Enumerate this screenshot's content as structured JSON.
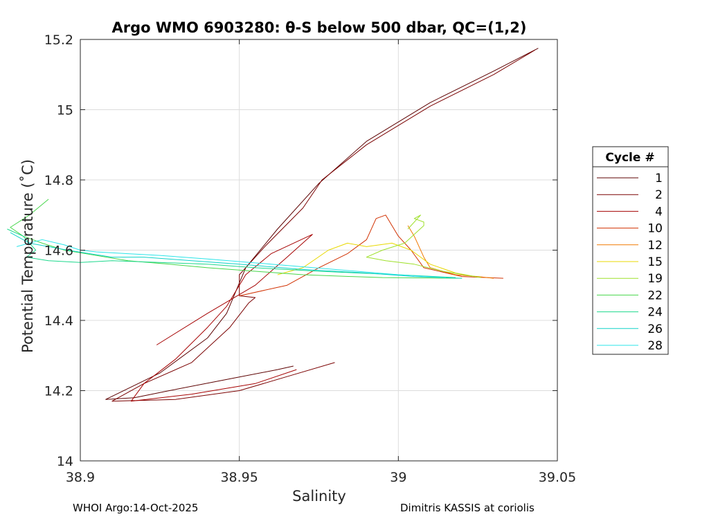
{
  "chart_data": {
    "type": "line",
    "title": "Argo WMO 6903280: θ-S below 500 dbar,  QC=(1,2)",
    "xlabel": "Salinity",
    "ylabel": "Potential Temperature (˚C)",
    "xlim": [
      38.9,
      39.05
    ],
    "ylim": [
      14,
      15.2
    ],
    "xticks": [
      38.9,
      38.95,
      39,
      39.05
    ],
    "xtick_labels": [
      "38.9",
      "38.95",
      "39",
      "39.05"
    ],
    "yticks": [
      14,
      14.2,
      14.4,
      14.6,
      14.8,
      15,
      15.2
    ],
    "ytick_labels": [
      "14",
      "14.2",
      "14.4",
      "14.6",
      "14.8",
      "15",
      "15.2"
    ],
    "grid": true,
    "legend_title": "Cycle #",
    "legend_position": "outside-right",
    "series": [
      {
        "name": "1",
        "color": "#5c0000",
        "points": [
          [
            39.044,
            15.175
          ],
          [
            39.03,
            15.11
          ],
          [
            39.01,
            15.02
          ],
          [
            38.99,
            14.91
          ],
          [
            38.975,
            14.79
          ],
          [
            38.962,
            14.66
          ],
          [
            38.952,
            14.55
          ],
          [
            38.946,
            14.42
          ],
          [
            38.94,
            14.35
          ],
          [
            38.925,
            14.25
          ],
          [
            38.908,
            14.175
          ],
          [
            38.917,
            14.18
          ],
          [
            38.928,
            14.2
          ],
          [
            38.945,
            14.23
          ],
          [
            38.962,
            14.26
          ],
          [
            38.967,
            14.27
          ]
        ]
      },
      {
        "name": "2",
        "color": "#7a0000",
        "points": [
          [
            39.043,
            15.17
          ],
          [
            39.03,
            15.1
          ],
          [
            39.01,
            15.01
          ],
          [
            38.99,
            14.9
          ],
          [
            38.976,
            14.8
          ],
          [
            38.97,
            14.72
          ],
          [
            38.958,
            14.61
          ],
          [
            38.95,
            14.53
          ],
          [
            38.95,
            14.47
          ],
          [
            38.955,
            14.465
          ],
          [
            38.953,
            14.45
          ],
          [
            38.947,
            14.38
          ],
          [
            38.935,
            14.28
          ],
          [
            38.92,
            14.22
          ],
          [
            38.91,
            14.17
          ],
          [
            38.93,
            14.175
          ],
          [
            38.95,
            14.2
          ],
          [
            38.965,
            14.24
          ],
          [
            38.98,
            14.28
          ]
        ]
      },
      {
        "name": "4",
        "color": "#a50000",
        "points": [
          [
            38.924,
            14.33
          ],
          [
            38.94,
            14.42
          ],
          [
            38.955,
            14.5
          ],
          [
            38.965,
            14.58
          ],
          [
            38.973,
            14.645
          ],
          [
            38.96,
            14.59
          ],
          [
            38.952,
            14.53
          ],
          [
            38.946,
            14.44
          ],
          [
            38.94,
            14.38
          ],
          [
            38.93,
            14.29
          ],
          [
            38.92,
            14.22
          ],
          [
            38.916,
            14.17
          ],
          [
            38.935,
            14.19
          ],
          [
            38.955,
            14.22
          ],
          [
            38.968,
            14.26
          ]
        ]
      },
      {
        "name": "10",
        "color": "#d13000",
        "points": [
          [
            38.95,
            14.47
          ],
          [
            38.965,
            14.5
          ],
          [
            38.975,
            14.55
          ],
          [
            38.984,
            14.59
          ],
          [
            38.99,
            14.63
          ],
          [
            38.993,
            14.69
          ],
          [
            38.996,
            14.7
          ],
          [
            38.998,
            14.67
          ],
          [
            39.0,
            14.64
          ],
          [
            39.004,
            14.6
          ],
          [
            39.008,
            14.55
          ],
          [
            39.02,
            14.525
          ],
          [
            39.033,
            14.52
          ]
        ]
      },
      {
        "name": "12",
        "color": "#f07800",
        "points": [
          [
            39.003,
            14.67
          ],
          [
            39.005,
            14.64
          ],
          [
            39.008,
            14.58
          ],
          [
            39.01,
            14.55
          ],
          [
            39.018,
            14.53
          ],
          [
            39.025,
            14.525
          ],
          [
            39.03,
            14.52
          ]
        ]
      },
      {
        "name": "15",
        "color": "#e8d800",
        "points": [
          [
            38.962,
            14.53
          ],
          [
            38.97,
            14.55
          ],
          [
            38.978,
            14.6
          ],
          [
            38.984,
            14.62
          ],
          [
            38.99,
            14.61
          ],
          [
            38.998,
            14.62
          ],
          [
            39.004,
            14.6
          ],
          [
            39.01,
            14.56
          ],
          [
            39.018,
            14.535
          ],
          [
            39.026,
            14.522
          ]
        ]
      },
      {
        "name": "19",
        "color": "#9ee02a",
        "points": [
          [
            39.003,
            14.66
          ],
          [
            39.007,
            14.7
          ],
          [
            39.005,
            14.69
          ],
          [
            39.008,
            14.68
          ],
          [
            39.008,
            14.67
          ],
          [
            39.002,
            14.62
          ],
          [
            38.995,
            14.6
          ],
          [
            38.99,
            14.58
          ],
          [
            38.996,
            14.57
          ],
          [
            39.005,
            14.56
          ],
          [
            39.014,
            14.54
          ],
          [
            39.026,
            14.522
          ]
        ]
      },
      {
        "name": "22",
        "color": "#46d64a",
        "points": [
          [
            38.89,
            14.745
          ],
          [
            38.884,
            14.7
          ],
          [
            38.878,
            14.665
          ],
          [
            38.882,
            14.64
          ],
          [
            38.888,
            14.62
          ],
          [
            38.895,
            14.6
          ],
          [
            38.905,
            14.585
          ],
          [
            38.915,
            14.57
          ],
          [
            38.928,
            14.56
          ],
          [
            38.94,
            14.55
          ],
          [
            38.955,
            14.54
          ],
          [
            38.97,
            14.53
          ],
          [
            38.985,
            14.525
          ],
          [
            38.995,
            14.522
          ],
          [
            39.02,
            14.52
          ]
        ]
      },
      {
        "name": "24",
        "color": "#1cd88c",
        "points": [
          [
            38.877,
            14.66
          ],
          [
            38.882,
            14.64
          ],
          [
            38.886,
            14.6
          ],
          [
            38.883,
            14.58
          ],
          [
            38.89,
            14.57
          ],
          [
            38.9,
            14.565
          ],
          [
            38.91,
            14.57
          ],
          [
            38.925,
            14.565
          ],
          [
            38.94,
            14.56
          ],
          [
            38.955,
            14.55
          ],
          [
            38.975,
            14.54
          ],
          [
            39.0,
            14.53
          ],
          [
            39.018,
            14.522
          ]
        ]
      },
      {
        "name": "26",
        "color": "#10d2c8",
        "points": [
          [
            38.878,
            14.65
          ],
          [
            38.884,
            14.62
          ],
          [
            38.89,
            14.61
          ],
          [
            38.896,
            14.6
          ],
          [
            38.903,
            14.59
          ],
          [
            38.91,
            14.58
          ],
          [
            38.92,
            14.58
          ],
          [
            38.935,
            14.57
          ],
          [
            38.95,
            14.56
          ],
          [
            38.97,
            14.545
          ],
          [
            38.99,
            14.535
          ],
          [
            39.005,
            14.525
          ],
          [
            39.02,
            14.52
          ]
        ]
      },
      {
        "name": "28",
        "color": "#2ae4e8",
        "points": [
          [
            38.88,
            14.61
          ],
          [
            38.888,
            14.63
          ],
          [
            38.895,
            14.615
          ],
          [
            38.9,
            14.6
          ],
          [
            38.905,
            14.595
          ],
          [
            38.915,
            14.59
          ],
          [
            38.925,
            14.585
          ],
          [
            38.94,
            14.575
          ],
          [
            38.96,
            14.56
          ],
          [
            38.98,
            14.545
          ],
          [
            39.0,
            14.53
          ],
          [
            39.015,
            14.522
          ]
        ]
      }
    ]
  },
  "footer": {
    "left": "WHOI Argo:14-Oct-2025",
    "right": "Dimitris KASSIS at coriolis"
  }
}
